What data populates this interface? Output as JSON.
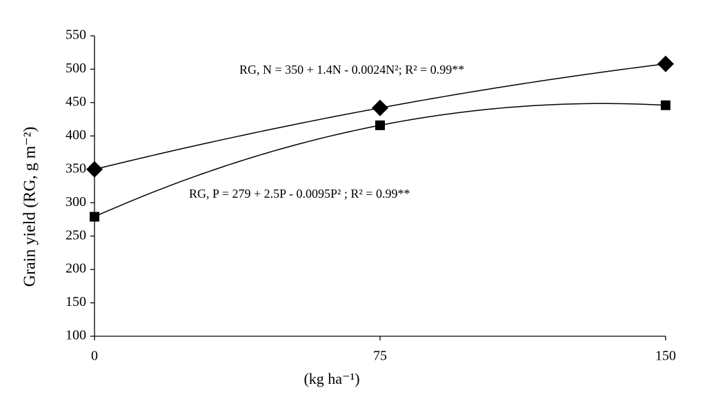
{
  "chart_data": {
    "type": "line",
    "y_label": "Grain yield (RG, g m⁻²)",
    "x_label": "(kg ha⁻¹)",
    "annotations": [
      "RG, N =  350 + 1.4N - 0.0024N²; R² = 0.99**",
      "RG, P = 279 + 2.5P - 0.0095P² ; R² = 0.99**"
    ],
    "x": [
      0,
      75,
      150
    ],
    "series": [
      {
        "color": "#000000",
        "marker": "diamond",
        "values": [
          350,
          442,
          508
        ]
      },
      {
        "color": "#000000",
        "marker": "square",
        "values": [
          279,
          416,
          446
        ]
      }
    ],
    "xlim": [
      0,
      150
    ],
    "xticks": [
      0,
      75,
      150
    ],
    "ylim": [
      100,
      550
    ],
    "yticks": [
      100,
      150,
      200,
      250,
      300,
      350,
      400,
      450,
      500,
      550
    ],
    "grid": false
  }
}
